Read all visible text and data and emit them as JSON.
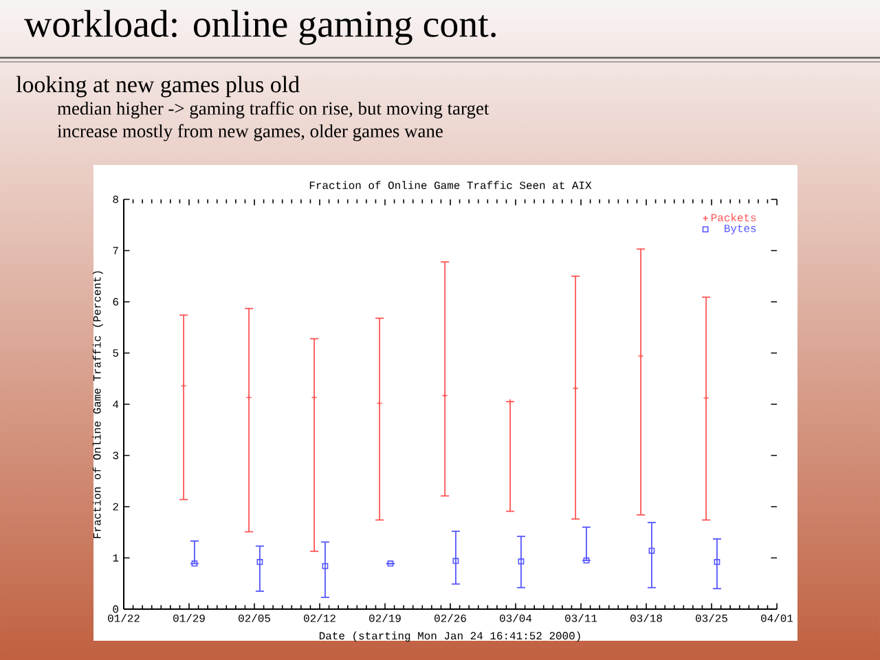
{
  "chart_data": {
    "type": "scatter",
    "title": "Fraction of Online Game Traffic Seen at AIX",
    "subtitle": "workload: online gaming cont.",
    "annotations": [
      "looking at new games plus old",
      "median higher -> gaming traffic on rise, but moving target",
      "increase mostly from new games, older games wane"
    ],
    "xlabel": "Date (starting Mon Jan 24 16:41:52 2000)",
    "ylabel": "Fraction of Online Game Traffic (Percent)",
    "xlim": [
      "2000-01-22",
      "2000-04-01"
    ],
    "xticks": [
      {
        "value": "2000-01-22",
        "label": "01/22"
      },
      {
        "value": "2000-01-29",
        "label": "01/29"
      },
      {
        "value": "2000-02-05",
        "label": "02/05"
      },
      {
        "value": "2000-02-12",
        "label": "02/12"
      },
      {
        "value": "2000-02-19",
        "label": "02/19"
      },
      {
        "value": "2000-02-26",
        "label": "02/26"
      },
      {
        "value": "2000-03-04",
        "label": "03/04"
      },
      {
        "value": "2000-03-11",
        "label": "03/11"
      },
      {
        "value": "2000-03-18",
        "label": "03/18"
      },
      {
        "value": "2000-03-25",
        "label": "03/25"
      },
      {
        "value": "2000-04-01",
        "label": "04/01"
      }
    ],
    "ylim": [
      0,
      8
    ],
    "yticks": [
      0,
      1,
      2,
      3,
      4,
      5,
      6,
      7,
      8
    ],
    "legend": "top right",
    "series": [
      {
        "name": "Packets",
        "color": "#ff5555",
        "marker": "cross",
        "x": [
          "2000-01-28T10:00",
          "2000-02-04T10:00",
          "2000-02-11T10:00",
          "2000-02-18T10:00",
          "2000-02-25T10:00",
          "2000-03-03T10:00",
          "2000-03-10T10:00",
          "2000-03-17T10:00",
          "2000-03-24T10:00"
        ],
        "values": [
          4.36,
          4.13,
          4.13,
          4.02,
          4.17,
          4.05,
          4.31,
          4.94,
          4.12
        ],
        "errors": [
          [
            2.14,
            5.74
          ],
          [
            1.51,
            5.87
          ],
          [
            1.13,
            5.28
          ],
          [
            1.74,
            5.68
          ],
          [
            2.21,
            6.78
          ],
          [
            1.91,
            4.05
          ],
          [
            1.76,
            6.5
          ],
          [
            1.84,
            7.03
          ],
          [
            1.74,
            6.09
          ]
        ]
      },
      {
        "name": "Bytes",
        "color": "#5555ff",
        "marker": "square",
        "x": [
          "2000-01-29T14:00",
          "2000-02-05T14:00",
          "2000-02-12T14:00",
          "2000-02-19T14:00",
          "2000-02-26T14:00",
          "2000-03-04T14:00",
          "2000-03-11T14:00",
          "2000-03-18T14:00",
          "2000-03-25T14:00"
        ],
        "values": [
          0.89,
          0.92,
          0.84,
          0.89,
          0.94,
          0.93,
          0.95,
          1.14,
          0.92
        ],
        "errors": [
          [
            0.89,
            1.33
          ],
          [
            0.35,
            1.23
          ],
          [
            0.23,
            1.31
          ],
          null,
          [
            0.49,
            1.52
          ],
          [
            0.42,
            1.42
          ],
          [
            0.95,
            1.6
          ],
          [
            0.42,
            1.69
          ],
          [
            0.4,
            1.37
          ]
        ]
      }
    ]
  }
}
